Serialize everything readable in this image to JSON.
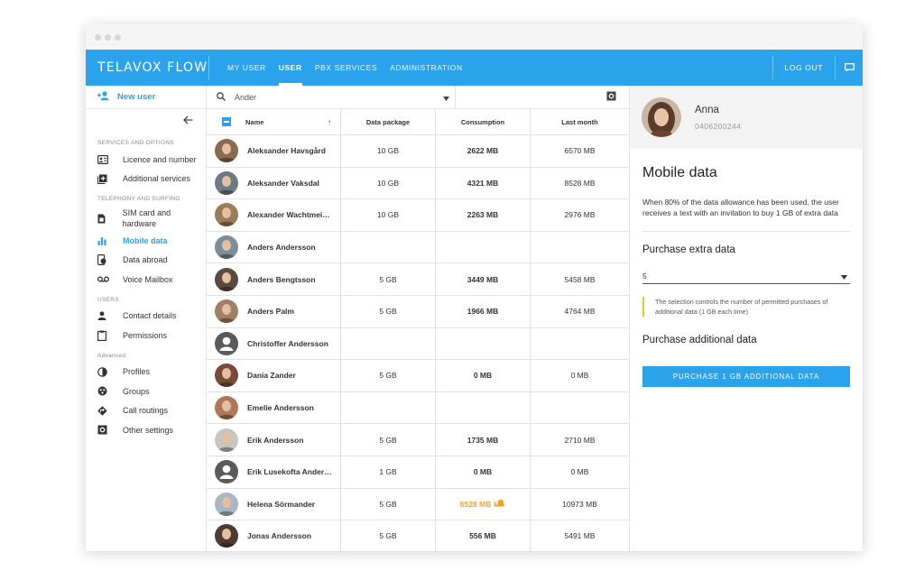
{
  "topbar": {
    "logo": "TELAVOX FLOW",
    "nav": [
      "MY USER",
      "USER",
      "PBX SERVICES",
      "ADMINISTRATION"
    ],
    "active_nav": "USER",
    "logout": "LOG OUT",
    "accent": "#2aa3ec"
  },
  "sidebar": {
    "new_user": "New user",
    "sections": [
      {
        "title": "SERVICES AND OPTIONS",
        "items": [
          {
            "label": "Licence and number",
            "icon": "contact-card-icon"
          },
          {
            "label": "Additional services",
            "icon": "add-box-icon"
          }
        ]
      },
      {
        "title": "TELEPHONY AND SURFING",
        "items": [
          {
            "label": "SIM card and hardware",
            "icon": "sim-card-icon"
          },
          {
            "label": "Mobile data",
            "icon": "bar-chart-icon",
            "active": true
          },
          {
            "label": "Data abroad",
            "icon": "phone-globe-icon"
          },
          {
            "label": "Voice Mailbox",
            "icon": "voicemail-icon"
          }
        ]
      },
      {
        "title": "USERS",
        "items": [
          {
            "label": "Contact details",
            "icon": "person-icon"
          },
          {
            "label": "Permissions",
            "icon": "clipboard-icon"
          }
        ]
      },
      {
        "title": "Advanced",
        "items": [
          {
            "label": "Profiles",
            "icon": "half-circle-icon"
          },
          {
            "label": "Groups",
            "icon": "groups-icon"
          },
          {
            "label": "Call routings",
            "icon": "routing-diamond-icon"
          },
          {
            "label": "Other settings",
            "icon": "settings-box-icon"
          }
        ]
      }
    ]
  },
  "list": {
    "search_value": "Ander",
    "columns": {
      "name": "Name",
      "package": "Data package",
      "consumption": "Consumption",
      "last_month": "Last month"
    },
    "rows": [
      {
        "name": "Aleksander Havsgård",
        "package": "10 GB",
        "consumption": "2622 MB",
        "last": "6570 MB",
        "avatar": "#8a6b4e"
      },
      {
        "name": "Aleksander Vaksdal",
        "package": "10 GB",
        "consumption": "4321 MB",
        "last": "8528 MB",
        "avatar": "#6d7a86"
      },
      {
        "name": "Alexander Wachtmeister",
        "package": "10 GB",
        "consumption": "2263 MB",
        "last": "2976 MB",
        "avatar": "#9c7c58"
      },
      {
        "name": "Anders Andersson",
        "package": "",
        "consumption": "",
        "last": "",
        "avatar": "#7d8d9a"
      },
      {
        "name": "Anders Bengtsson",
        "package": "5 GB",
        "consumption": "3449 MB",
        "last": "5458 MB",
        "avatar": "#5d4a3e"
      },
      {
        "name": "Anders Palm",
        "package": "5 GB",
        "consumption": "1966 MB",
        "last": "4764 MB",
        "avatar": "#a27e62"
      },
      {
        "name": "Christoffer Andersson",
        "package": "",
        "consumption": "",
        "last": "",
        "avatar": "generic"
      },
      {
        "name": "Dania Zander",
        "package": "5 GB",
        "consumption": "0 MB",
        "last": "0 MB",
        "avatar": "#7a4a38"
      },
      {
        "name": "Emelie Andersson",
        "package": "",
        "consumption": "",
        "last": "",
        "avatar": "#b0775a"
      },
      {
        "name": "Erik Andersson",
        "package": "5 GB",
        "consumption": "1735 MB",
        "last": "2710 MB",
        "avatar": "#c9c4bd"
      },
      {
        "name": "Erik Lusekofta Andersson",
        "package": "1 GB",
        "consumption": "0 MB",
        "last": "0 MB",
        "avatar": "generic"
      },
      {
        "name": "Helena Sörmander",
        "package": "5 GB",
        "consumption": "6528 MB",
        "last": "10973 MB",
        "avatar": "#a9b8c4",
        "warn": true
      },
      {
        "name": "Jonas Andersson",
        "package": "5 GB",
        "consumption": "556 MB",
        "last": "5491 MB",
        "avatar": "#4e3c33"
      }
    ]
  },
  "detail": {
    "user_name": "Anna",
    "user_phone": "0406200244",
    "title": "Mobile data",
    "description": "When 80% of the data allowance has been used, the user receives a text with an invitation to buy 1 GB of extra data",
    "extra_title": "Purchase extra data",
    "extra_value": "5",
    "note": "The selection controls the number of permitted purchases of additional data (1 GB each time)",
    "additional_title": "Purchase additional data",
    "button": "PURCHASE 1 GB ADDITIONAL DATA",
    "warn_color": "#f0a32a",
    "note_color": "#f5c020"
  }
}
